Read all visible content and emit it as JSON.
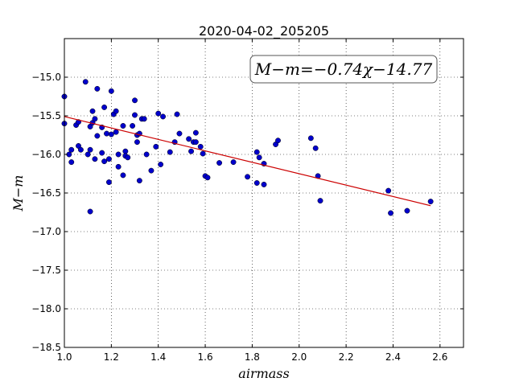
{
  "chart_data": {
    "type": "scatter",
    "title": "2020-04-02_205205",
    "xlabel": "airmass",
    "ylabel": "M−m",
    "annotation": "M−m=−0.74χ−14.77",
    "xlim": [
      1.0,
      2.7
    ],
    "ylim": [
      -18.5,
      -14.5
    ],
    "y_inverted": true,
    "grid": true,
    "x_ticks": [
      "1.0",
      "1.2",
      "1.4",
      "1.6",
      "1.8",
      "2.0",
      "2.2",
      "2.4",
      "2.6"
    ],
    "x_tick_values": [
      1.0,
      1.2,
      1.4,
      1.6,
      1.8,
      2.0,
      2.2,
      2.4,
      2.6
    ],
    "y_ticks": [
      "−15.0",
      "−15.5",
      "−16.0",
      "−16.5",
      "−17.0",
      "−17.5",
      "−18.0",
      "−18.5"
    ],
    "y_tick_values": [
      -15.0,
      -15.5,
      -16.0,
      -16.5,
      -17.0,
      -17.5,
      -18.0,
      -18.5
    ],
    "point_color": "#0000cc",
    "fit_color": "#cc0000",
    "fit": {
      "slope": -0.74,
      "intercept": -14.77,
      "x_range": [
        1.0,
        2.56
      ]
    },
    "points": [
      [
        1.0,
        -15.25
      ],
      [
        1.0,
        -15.6
      ],
      [
        1.02,
        -16.0
      ],
      [
        1.03,
        -15.94
      ],
      [
        1.03,
        -16.1
      ],
      [
        1.05,
        -15.62
      ],
      [
        1.06,
        -15.58
      ],
      [
        1.06,
        -15.89
      ],
      [
        1.07,
        -15.94
      ],
      [
        1.09,
        -15.06
      ],
      [
        1.1,
        -16.0
      ],
      [
        1.11,
        -15.94
      ],
      [
        1.11,
        -15.64
      ],
      [
        1.11,
        -16.74
      ],
      [
        1.12,
        -15.44
      ],
      [
        1.12,
        -15.59
      ],
      [
        1.13,
        -15.54
      ],
      [
        1.13,
        -16.06
      ],
      [
        1.14,
        -15.15
      ],
      [
        1.14,
        -15.76
      ],
      [
        1.16,
        -15.65
      ],
      [
        1.16,
        -15.98
      ],
      [
        1.17,
        -15.39
      ],
      [
        1.17,
        -16.09
      ],
      [
        1.18,
        -15.73
      ],
      [
        1.19,
        -16.36
      ],
      [
        1.19,
        -16.06
      ],
      [
        1.2,
        -15.74
      ],
      [
        1.2,
        -15.18
      ],
      [
        1.21,
        -15.48
      ],
      [
        1.22,
        -15.44
      ],
      [
        1.22,
        -15.71
      ],
      [
        1.23,
        -16.0
      ],
      [
        1.23,
        -16.16
      ],
      [
        1.25,
        -16.27
      ],
      [
        1.25,
        -15.63
      ],
      [
        1.26,
        -15.96
      ],
      [
        1.26,
        -16.02
      ],
      [
        1.27,
        -16.04
      ],
      [
        1.29,
        -15.63
      ],
      [
        1.3,
        -15.49
      ],
      [
        1.3,
        -15.3
      ],
      [
        1.31,
        -15.84
      ],
      [
        1.31,
        -15.75
      ],
      [
        1.32,
        -15.73
      ],
      [
        1.32,
        -16.34
      ],
      [
        1.33,
        -15.54
      ],
      [
        1.34,
        -15.54
      ],
      [
        1.35,
        -16.0
      ],
      [
        1.37,
        -16.21
      ],
      [
        1.39,
        -15.9
      ],
      [
        1.4,
        -15.47
      ],
      [
        1.41,
        -16.13
      ],
      [
        1.42,
        -15.51
      ],
      [
        1.45,
        -15.97
      ],
      [
        1.47,
        -15.84
      ],
      [
        1.48,
        -15.48
      ],
      [
        1.49,
        -15.73
      ],
      [
        1.53,
        -15.8
      ],
      [
        1.54,
        -15.96
      ],
      [
        1.55,
        -15.84
      ],
      [
        1.56,
        -15.72
      ],
      [
        1.56,
        -15.84
      ],
      [
        1.58,
        -15.9
      ],
      [
        1.59,
        -15.99
      ],
      [
        1.6,
        -16.28
      ],
      [
        1.61,
        -16.3
      ],
      [
        1.66,
        -16.11
      ],
      [
        1.72,
        -16.1
      ],
      [
        1.78,
        -16.29
      ],
      [
        1.82,
        -16.37
      ],
      [
        1.82,
        -15.97
      ],
      [
        1.83,
        -16.04
      ],
      [
        1.85,
        -16.12
      ],
      [
        1.85,
        -16.39
      ],
      [
        1.9,
        -15.87
      ],
      [
        1.91,
        -15.82
      ],
      [
        2.05,
        -15.79
      ],
      [
        2.07,
        -15.92
      ],
      [
        2.08,
        -16.28
      ],
      [
        2.09,
        -16.6
      ],
      [
        2.38,
        -16.47
      ],
      [
        2.39,
        -16.76
      ],
      [
        2.46,
        -16.73
      ],
      [
        2.56,
        -16.61
      ]
    ]
  }
}
